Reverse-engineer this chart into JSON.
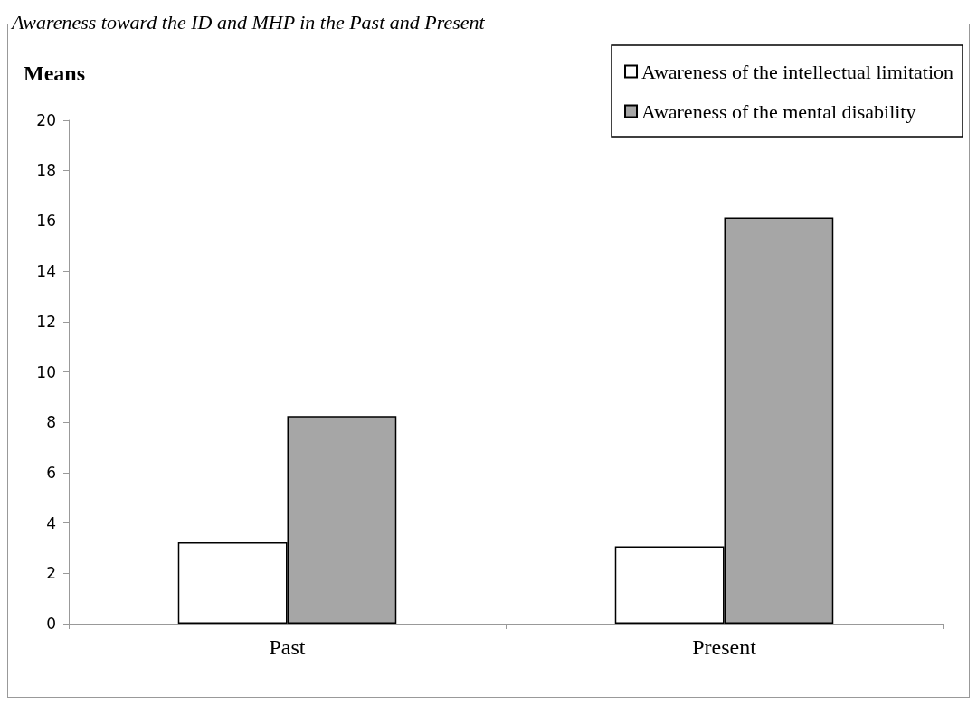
{
  "chart_data": {
    "type": "bar",
    "title": "Awareness toward the ID and MHP in the Past and Present",
    "ylabel": "Means",
    "categories": [
      "Past",
      "Present"
    ],
    "series": [
      {
        "name": "Awareness of the intellectual limitation",
        "color": "#ffffff",
        "values": [
          3.23,
          3.07
        ]
      },
      {
        "name": "Awareness of the mental disability",
        "color": "#a6a6a6",
        "values": [
          8.25,
          16.14
        ]
      }
    ],
    "ylim": [
      0,
      20
    ],
    "yticks": [
      0,
      2,
      4,
      6,
      8,
      10,
      12,
      14,
      16,
      18,
      20
    ],
    "grid": false,
    "legend": "top right"
  }
}
